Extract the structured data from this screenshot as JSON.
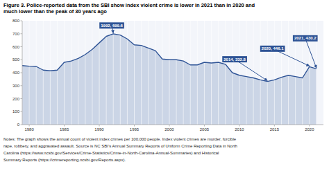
{
  "chart_data": {
    "type": "area",
    "title": [
      "Figure 3. Police-reported data from the SBI show index violent crime is lower in 2021 than in 2020 and",
      "much lower than the peak of 30 years ago"
    ],
    "x": [
      1979,
      1980,
      1981,
      1982,
      1983,
      1984,
      1985,
      1986,
      1987,
      1988,
      1989,
      1990,
      1991,
      1992,
      1993,
      1994,
      1995,
      1996,
      1997,
      1998,
      1999,
      2000,
      2001,
      2002,
      2003,
      2004,
      2005,
      2006,
      2007,
      2008,
      2009,
      2010,
      2011,
      2012,
      2013,
      2014,
      2015,
      2016,
      2017,
      2018,
      2019,
      2020,
      2021
    ],
    "values": [
      455,
      450,
      448,
      420,
      415,
      420,
      480,
      490,
      510,
      540,
      580,
      630,
      680,
      699.6,
      690,
      660,
      615,
      610,
      590,
      570,
      505,
      500,
      500,
      490,
      460,
      460,
      480,
      475,
      480,
      465,
      400,
      380,
      370,
      360,
      345,
      332.8,
      345,
      365,
      380,
      370,
      360,
      446.1,
      430.2
    ],
    "color": "#2F5496",
    "xlim": [
      1979,
      2022
    ],
    "xticks": [
      1980,
      1985,
      1990,
      1995,
      2000,
      2005,
      2010,
      2015,
      2020
    ],
    "ylim": [
      0,
      800
    ],
    "yticks": [
      0,
      100,
      200,
      300,
      400,
      500,
      600,
      700,
      800
    ],
    "grid": true,
    "annotations": [
      {
        "x": 1992,
        "y": 699.6,
        "label": "1992, 699.6"
      },
      {
        "x": 2014,
        "y": 332.8,
        "label": "2014, 332.8"
      },
      {
        "x": 2020,
        "y": 446.1,
        "label": "2020, 446.1"
      },
      {
        "x": 2021,
        "y": 430.2,
        "label": "2021, 430.2"
      }
    ],
    "notes": [
      "Notes: The graph shows the annual count of violent index crimes per 100,000 people. Index violent crimes are murder, forcible",
      "rape, robbery, and aggravated assault. Source is NC SBI’s Annual Summary Reports of Uniform Crime Reporting Data in North",
      "Carolina (https://www.ncsbi.gov/Services/Crime-Statistics/Crime-in-North-Carolina-Annual-Summaries) and Historical",
      "Summary Reports (https://crimereporting.ncsbi.gov/Reports.aspx)."
    ]
  }
}
